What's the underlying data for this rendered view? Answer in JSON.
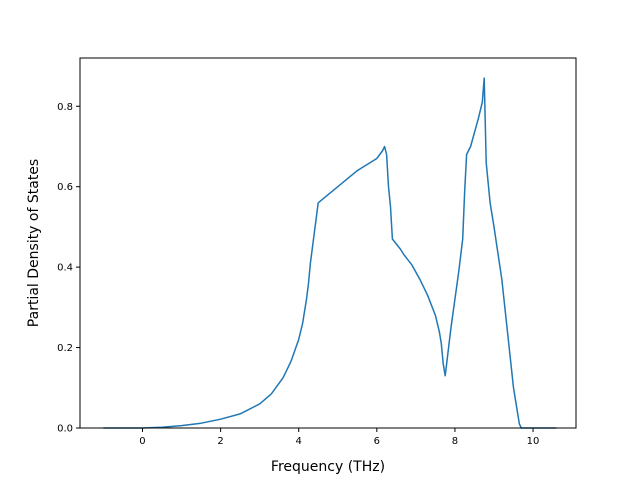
{
  "chart_data": {
    "type": "line",
    "title": "",
    "xlabel": "Frequency (THz)",
    "ylabel": "Partial Density of States",
    "xlim": [
      -1.6,
      11.1
    ],
    "ylim": [
      0.0,
      0.92
    ],
    "xticks": [
      0,
      2,
      4,
      6,
      8,
      10
    ],
    "yticks": [
      0.0,
      0.2,
      0.4,
      0.6,
      0.8
    ],
    "xtick_labels": [
      "0",
      "2",
      "4",
      "6",
      "8",
      "10"
    ],
    "ytick_labels": [
      "0.0",
      "0.2",
      "0.4",
      "0.6",
      "0.8"
    ],
    "grid": false,
    "legend": "none",
    "series": [
      {
        "color": "#1f77b4",
        "x": [
          -1.0,
          0.0,
          0.5,
          1.0,
          1.5,
          2.0,
          2.5,
          3.0,
          3.3,
          3.6,
          3.8,
          4.0,
          4.1,
          4.2,
          4.25,
          4.3,
          4.5,
          5.0,
          5.5,
          6.0,
          6.15,
          6.2,
          6.25,
          6.3,
          6.35,
          6.4,
          6.6,
          6.7,
          6.9,
          7.1,
          7.3,
          7.5,
          7.6,
          7.65,
          7.7,
          7.75,
          7.9,
          8.1,
          8.2,
          8.25,
          8.3,
          8.4,
          8.6,
          8.7,
          8.75,
          8.8,
          8.9,
          9.0,
          9.2,
          9.4,
          9.5,
          9.6,
          9.65,
          9.7,
          10.0,
          10.6
        ],
        "y": [
          0.0,
          0.0,
          0.002,
          0.006,
          0.012,
          0.022,
          0.035,
          0.06,
          0.085,
          0.125,
          0.165,
          0.22,
          0.26,
          0.32,
          0.36,
          0.41,
          0.56,
          0.6,
          0.64,
          0.67,
          0.69,
          0.7,
          0.68,
          0.6,
          0.55,
          0.47,
          0.445,
          0.43,
          0.405,
          0.37,
          0.33,
          0.28,
          0.24,
          0.21,
          0.16,
          0.13,
          0.25,
          0.39,
          0.47,
          0.59,
          0.68,
          0.7,
          0.77,
          0.81,
          0.87,
          0.66,
          0.56,
          0.5,
          0.37,
          0.19,
          0.1,
          0.04,
          0.01,
          0.0,
          0.0,
          0.0
        ]
      }
    ]
  }
}
